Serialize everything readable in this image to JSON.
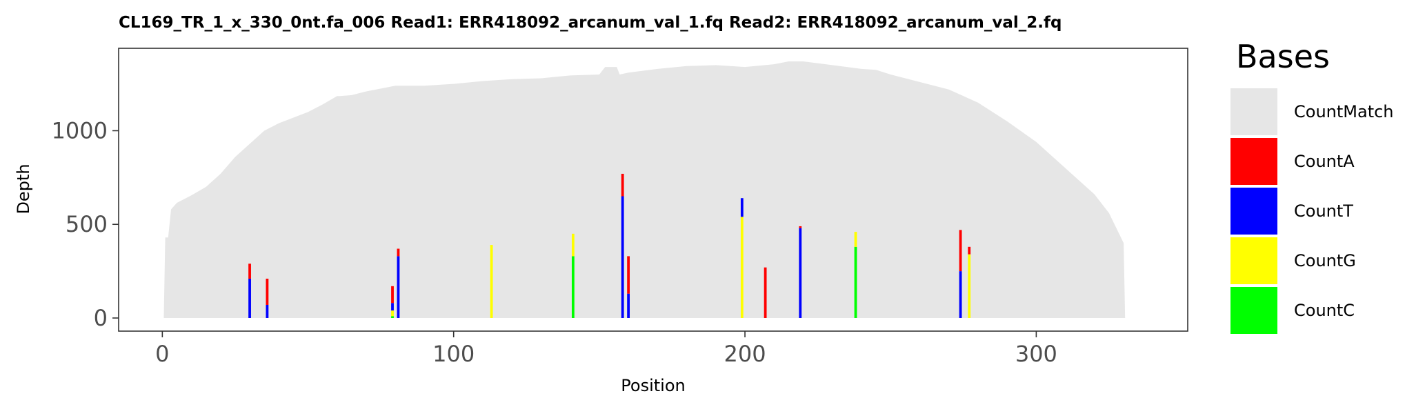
{
  "chart_data": {
    "type": "bar",
    "stacked": true,
    "title": "CL169_TR_1_x_330_0nt.fa_006   Read1: ERR418092_arcanum_val_1.fq   Read2: ERR418092_arcanum_val_2.fq",
    "xlabel": "Position",
    "ylabel": "Depth",
    "xlim": [
      -15,
      352
    ],
    "ylim": [
      -70,
      1440
    ],
    "x_ticks": [
      0,
      100,
      200,
      300
    ],
    "y_ticks": [
      0,
      500,
      1000
    ],
    "grid": false,
    "legend": {
      "title": "Bases",
      "position": "right",
      "entries": [
        "CountMatch",
        "CountA",
        "CountT",
        "CountG",
        "CountC"
      ]
    },
    "colors": {
      "CountMatch": "#e6e6e6",
      "CountA": "#ff0000",
      "CountT": "#0000ff",
      "CountG": "#ffff00",
      "CountC": "#00ff00"
    },
    "total_depth_profile": [
      [
        1,
        430
      ],
      [
        2,
        430
      ],
      [
        3,
        580
      ],
      [
        5,
        615
      ],
      [
        10,
        655
      ],
      [
        15,
        700
      ],
      [
        20,
        770
      ],
      [
        25,
        860
      ],
      [
        30,
        930
      ],
      [
        35,
        1000
      ],
      [
        40,
        1040
      ],
      [
        50,
        1100
      ],
      [
        55,
        1140
      ],
      [
        60,
        1185
      ],
      [
        61,
        1185
      ],
      [
        65,
        1190
      ],
      [
        70,
        1210
      ],
      [
        80,
        1240
      ],
      [
        90,
        1240
      ],
      [
        100,
        1250
      ],
      [
        110,
        1265
      ],
      [
        120,
        1275
      ],
      [
        130,
        1280
      ],
      [
        140,
        1295
      ],
      [
        150,
        1300
      ],
      [
        152,
        1340
      ],
      [
        156,
        1340
      ],
      [
        157,
        1300
      ],
      [
        160,
        1310
      ],
      [
        170,
        1330
      ],
      [
        180,
        1345
      ],
      [
        190,
        1350
      ],
      [
        200,
        1340
      ],
      [
        210,
        1355
      ],
      [
        215,
        1370
      ],
      [
        220,
        1370
      ],
      [
        230,
        1350
      ],
      [
        240,
        1330
      ],
      [
        245,
        1325
      ],
      [
        250,
        1300
      ],
      [
        260,
        1260
      ],
      [
        270,
        1220
      ],
      [
        280,
        1150
      ],
      [
        290,
        1050
      ],
      [
        300,
        940
      ],
      [
        310,
        800
      ],
      [
        320,
        660
      ],
      [
        325,
        560
      ],
      [
        330,
        400
      ]
    ],
    "mismatch_bars": [
      {
        "pos": 30,
        "A": 80,
        "T": 210,
        "G": 0,
        "C": 0
      },
      {
        "pos": 36,
        "A": 140,
        "T": 70,
        "G": 0,
        "C": 0
      },
      {
        "pos": 79,
        "A": 90,
        "T": 40,
        "G": 30,
        "C": 10
      },
      {
        "pos": 81,
        "A": 40,
        "T": 330,
        "G": 0,
        "C": 0
      },
      {
        "pos": 113,
        "A": 0,
        "T": 0,
        "G": 390,
        "C": 0
      },
      {
        "pos": 141,
        "A": 0,
        "T": 0,
        "G": 120,
        "C": 330
      },
      {
        "pos": 158,
        "A": 120,
        "T": 650,
        "G": 0,
        "C": 0
      },
      {
        "pos": 160,
        "A": 200,
        "T": 130,
        "G": 0,
        "C": 0
      },
      {
        "pos": 199,
        "A": 0,
        "T": 100,
        "G": 540,
        "C": 0
      },
      {
        "pos": 207,
        "A": 270,
        "T": 0,
        "G": 0,
        "C": 0
      },
      {
        "pos": 219,
        "A": 10,
        "T": 480,
        "G": 0,
        "C": 0
      },
      {
        "pos": 238,
        "A": 0,
        "T": 0,
        "G": 80,
        "C": 380
      },
      {
        "pos": 274,
        "A": 220,
        "T": 250,
        "G": 0,
        "C": 0
      },
      {
        "pos": 277,
        "A": 40,
        "T": 0,
        "G": 340,
        "C": 0
      }
    ]
  }
}
